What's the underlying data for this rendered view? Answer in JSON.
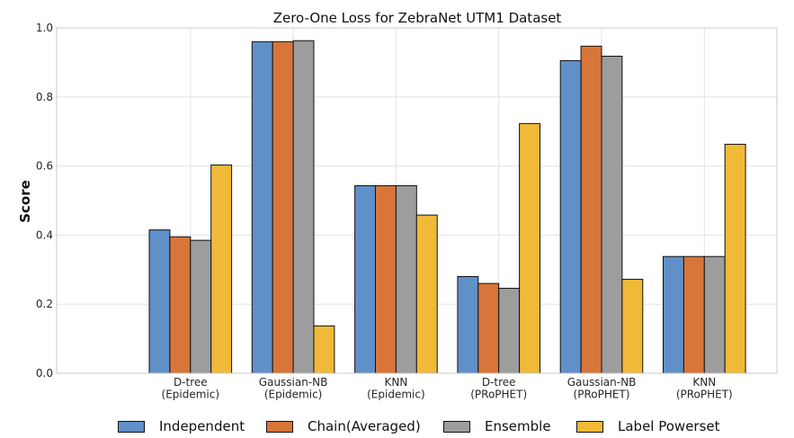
{
  "chart_data": {
    "type": "bar",
    "title": "Zero-One Loss for ZebraNet UTM1 Dataset",
    "xlabel": "",
    "ylabel": "Score",
    "ylim": [
      0.0,
      1.0
    ],
    "yticks": [
      "0.0",
      "0.2",
      "0.4",
      "0.6",
      "0.8",
      "1.0"
    ],
    "grid": true,
    "legend_position": "bottom",
    "categories": [
      [
        "D-tree",
        "(Epidemic)"
      ],
      [
        "Gaussian-NB",
        "(Epidemic)"
      ],
      [
        "KNN",
        "(Epidemic)"
      ],
      [
        "D-tree",
        "(PRoPHET)"
      ],
      [
        "Gaussian-NB",
        "(PRoPHET)"
      ],
      [
        "KNN",
        "(PRoPHET)"
      ]
    ],
    "series": [
      {
        "name": "Independent",
        "color": "#6090c8",
        "values": [
          0.415,
          0.96,
          0.543,
          0.28,
          0.905,
          0.338
        ]
      },
      {
        "name": "Chain(Averaged)",
        "color": "#d8763a",
        "values": [
          0.395,
          0.96,
          0.543,
          0.26,
          0.947,
          0.338
        ]
      },
      {
        "name": "Ensemble",
        "color": "#9d9d9d",
        "values": [
          0.385,
          0.963,
          0.543,
          0.246,
          0.918,
          0.338
        ]
      },
      {
        "name": "Label Powerset",
        "color": "#f0ba38",
        "values": [
          0.603,
          0.137,
          0.458,
          0.723,
          0.272,
          0.663
        ]
      }
    ]
  }
}
